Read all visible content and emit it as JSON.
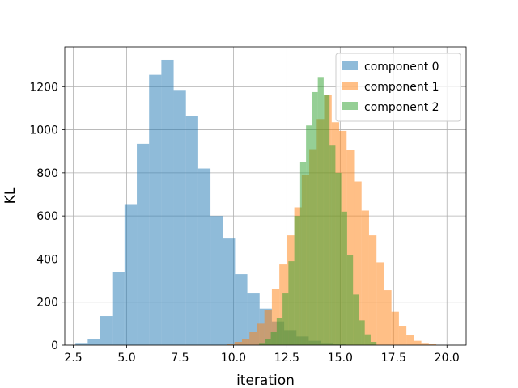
{
  "chart_data": {
    "type": "bar",
    "xlabel": "iteration",
    "ylabel": "KL",
    "xlim": [
      2.1,
      20.9
    ],
    "ylim": [
      0,
      1385
    ],
    "xticks": [
      2.5,
      5.0,
      7.5,
      10.0,
      12.5,
      15.0,
      17.5,
      20.0
    ],
    "xtick_labels": [
      "2.5",
      "5.0",
      "7.5",
      "10.0",
      "12.5",
      "15.0",
      "17.5",
      "20.0"
    ],
    "yticks": [
      0,
      200,
      400,
      600,
      800,
      1000,
      1200
    ],
    "ytick_labels": [
      "0",
      "200",
      "400",
      "600",
      "800",
      "1000",
      "1200"
    ],
    "grid": true,
    "legend_position": "top-right",
    "series": [
      {
        "name": "component 0",
        "color": "#1f77b4",
        "alpha": 0.5,
        "bin_edges": [
          2.6,
          3.175,
          3.75,
          4.325,
          4.9,
          5.475,
          6.05,
          6.625,
          7.2,
          7.775,
          8.35,
          8.925,
          9.5,
          10.075,
          10.65,
          11.225,
          11.8,
          12.375,
          12.95,
          13.525,
          14.1,
          14.675,
          15.25
        ],
        "counts": [
          10,
          30,
          135,
          340,
          655,
          935,
          1255,
          1325,
          1185,
          1065,
          820,
          600,
          495,
          330,
          240,
          170,
          110,
          70,
          40,
          20,
          10,
          5
        ]
      },
      {
        "name": "component 1",
        "color": "#ff7f0e",
        "alpha": 0.5,
        "bin_edges": [
          9.7,
          10.05,
          10.4,
          10.75,
          11.1,
          11.45,
          11.8,
          12.15,
          12.5,
          12.85,
          13.2,
          13.55,
          13.9,
          14.25,
          14.6,
          14.95,
          15.3,
          15.65,
          16.0,
          16.35,
          16.7,
          17.05,
          17.4,
          17.75,
          18.1,
          18.45,
          18.8,
          19.15,
          19.5
        ],
        "counts": [
          5,
          15,
          30,
          60,
          100,
          165,
          260,
          375,
          510,
          640,
          790,
          910,
          1050,
          1160,
          1035,
          995,
          905,
          760,
          625,
          510,
          385,
          255,
          155,
          90,
          45,
          20,
          10,
          5
        ]
      },
      {
        "name": "component 2",
        "color": "#2ca02c",
        "alpha": 0.5,
        "bin_edges": [
          11.2,
          11.475,
          11.75,
          12.025,
          12.3,
          12.575,
          12.85,
          13.125,
          13.4,
          13.675,
          13.95,
          14.225,
          14.5,
          14.775,
          15.05,
          15.325,
          15.6,
          15.875,
          16.15,
          16.425,
          16.7
        ],
        "counts": [
          10,
          30,
          60,
          125,
          240,
          390,
          600,
          850,
          1020,
          1175,
          1245,
          1160,
          930,
          800,
          620,
          420,
          235,
          115,
          50,
          15
        ]
      }
    ]
  }
}
